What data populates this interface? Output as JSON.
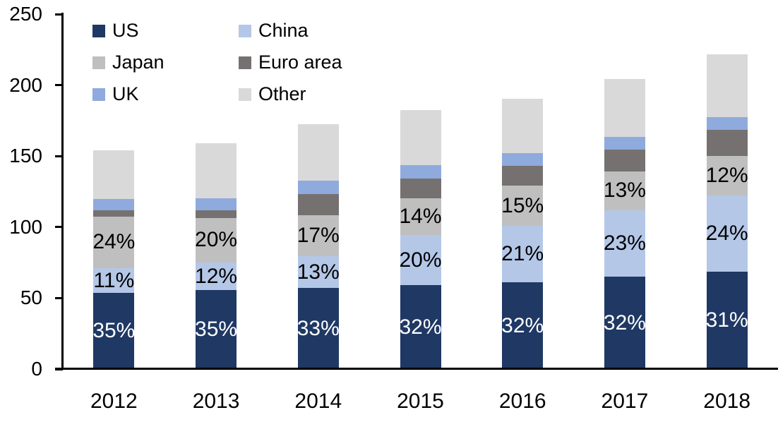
{
  "chart_data": {
    "type": "bar",
    "stacked": true,
    "title": "",
    "xlabel": "",
    "ylabel": "",
    "grid": false,
    "categories": [
      "2012",
      "2013",
      "2014",
      "2015",
      "2016",
      "2017",
      "2018"
    ],
    "series": [
      {
        "name": "US",
        "color": "#1f3864",
        "values": [
          53.5,
          55.5,
          57.0,
          59.0,
          61.0,
          65.0,
          68.5
        ],
        "segment_labels": [
          "35%",
          "35%",
          "33%",
          "32%",
          "32%",
          "32%",
          "31%"
        ],
        "label_color": "#ffffff"
      },
      {
        "name": "China",
        "color": "#b4c7e7",
        "values": [
          17.5,
          19.5,
          22.5,
          35.5,
          40.0,
          47.0,
          54.0
        ],
        "segment_labels": [
          "11%",
          "12%",
          "13%",
          "20%",
          "21%",
          "23%",
          "24%"
        ],
        "label_color": "#000000"
      },
      {
        "name": "Japan",
        "color": "#bfbfbf",
        "values": [
          36.5,
          31.5,
          29.0,
          26.0,
          28.0,
          27.0,
          27.5
        ],
        "segment_labels": [
          "24%",
          "20%",
          "17%",
          "14%",
          "15%",
          "13%",
          "12%"
        ],
        "label_color": "#000000"
      },
      {
        "name": "Euro area",
        "color": "#767171",
        "values": [
          4.5,
          5.5,
          15.0,
          13.5,
          14.0,
          15.5,
          18.5
        ],
        "segment_labels": null,
        "label_color": null
      },
      {
        "name": "UK",
        "color": "#8faadc",
        "values": [
          8.0,
          8.5,
          9.0,
          9.5,
          9.0,
          9.0,
          9.0
        ],
        "segment_labels": null,
        "label_color": null
      },
      {
        "name": "Other",
        "color": "#d9d9d9",
        "values": [
          34.0,
          38.5,
          40.0,
          39.0,
          38.5,
          41.0,
          44.0
        ],
        "segment_labels": null,
        "label_color": null
      }
    ],
    "totals_approx": [
      154,
      159,
      172.5,
      182.5,
      190.5,
      204.5,
      221.5
    ],
    "y_axis": {
      "min": 0,
      "max": 250,
      "step": 50,
      "tick_labels": [
        "0",
        "50",
        "100",
        "150",
        "200",
        "250"
      ]
    },
    "legend": {
      "position": "top-left",
      "columns": 2,
      "entries": [
        "US",
        "China",
        "Japan",
        "Euro area",
        "UK",
        "Other"
      ]
    },
    "axis_color": "#000000",
    "background_color": "#ffffff"
  }
}
